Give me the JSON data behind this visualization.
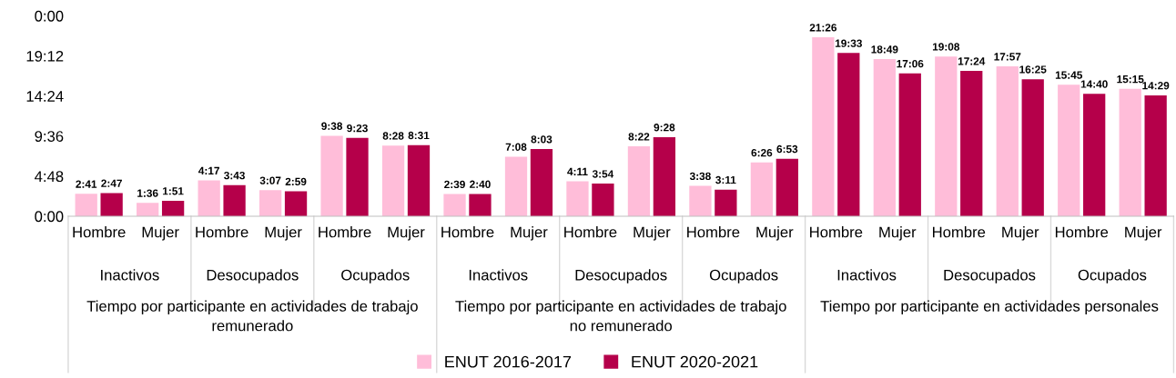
{
  "chart_data": {
    "type": "bar",
    "categories": [
      "Hombre",
      "Mujer",
      "Hombre",
      "Mujer",
      "Hombre",
      "Mujer",
      "Hombre",
      "Mujer",
      "Hombre",
      "Mujer",
      "Hombre",
      "Mujer",
      "Hombre",
      "Mujer",
      "Hombre",
      "Mujer",
      "Hombre",
      "Mujer"
    ],
    "series": [
      {
        "name": "ENUT 2016-2017",
        "color": "#ffbdd9",
        "values": [
          2.683,
          1.6,
          4.283,
          3.117,
          9.633,
          8.467,
          2.65,
          7.133,
          4.183,
          8.367,
          3.633,
          6.433,
          21.433,
          18.817,
          19.133,
          17.95,
          15.75,
          15.25
        ],
        "value_labels": [
          "2:41",
          "1:36",
          "4:17",
          "3:07",
          "9:38",
          "8:28",
          "2:39",
          "7:08",
          "4:11",
          "8:22",
          "3:38",
          "6:26",
          "21:26",
          "18:49",
          "19:08",
          "17:57",
          "15:45",
          "15:15"
        ]
      },
      {
        "name": "ENUT 2020-2021",
        "color": "#b5004a",
        "values": [
          2.783,
          1.85,
          3.717,
          2.983,
          9.383,
          8.517,
          2.667,
          8.05,
          3.9,
          9.467,
          3.183,
          6.883,
          19.55,
          17.1,
          17.4,
          16.417,
          14.667,
          14.483
        ],
        "value_labels": [
          "2:47",
          "1:51",
          "3:43",
          "2:59",
          "9:23",
          "8:31",
          "2:40",
          "8:03",
          "3:54",
          "9:28",
          "3:11",
          "6:53",
          "19:33",
          "17:06",
          "17:24",
          "16:25",
          "14:40",
          "14:29"
        ]
      }
    ],
    "ylim": [
      0,
      24
    ],
    "yticks": [
      {
        "value": 0,
        "label": "0:00"
      },
      {
        "value": 4.8,
        "label": "4:48"
      },
      {
        "value": 9.6,
        "label": "9:36"
      },
      {
        "value": 14.4,
        "label": "14:24"
      },
      {
        "value": 19.2,
        "label": "19:12"
      },
      {
        "value": 24,
        "label": "0:00"
      }
    ],
    "annotations": [
      "Inactivos",
      "Desocupados",
      "Ocupados",
      "Inactivos",
      "Desocupados",
      "Ocupados",
      "Inactivos",
      "Desocupados",
      "Ocupados",
      "Tiempo por participante en actividades de trabajo remunerado",
      "Tiempo por participante en actividades de trabajo no remunerado",
      "Tiempo por participante en actividades personales"
    ],
    "grid": false,
    "legend": "bottom"
  }
}
